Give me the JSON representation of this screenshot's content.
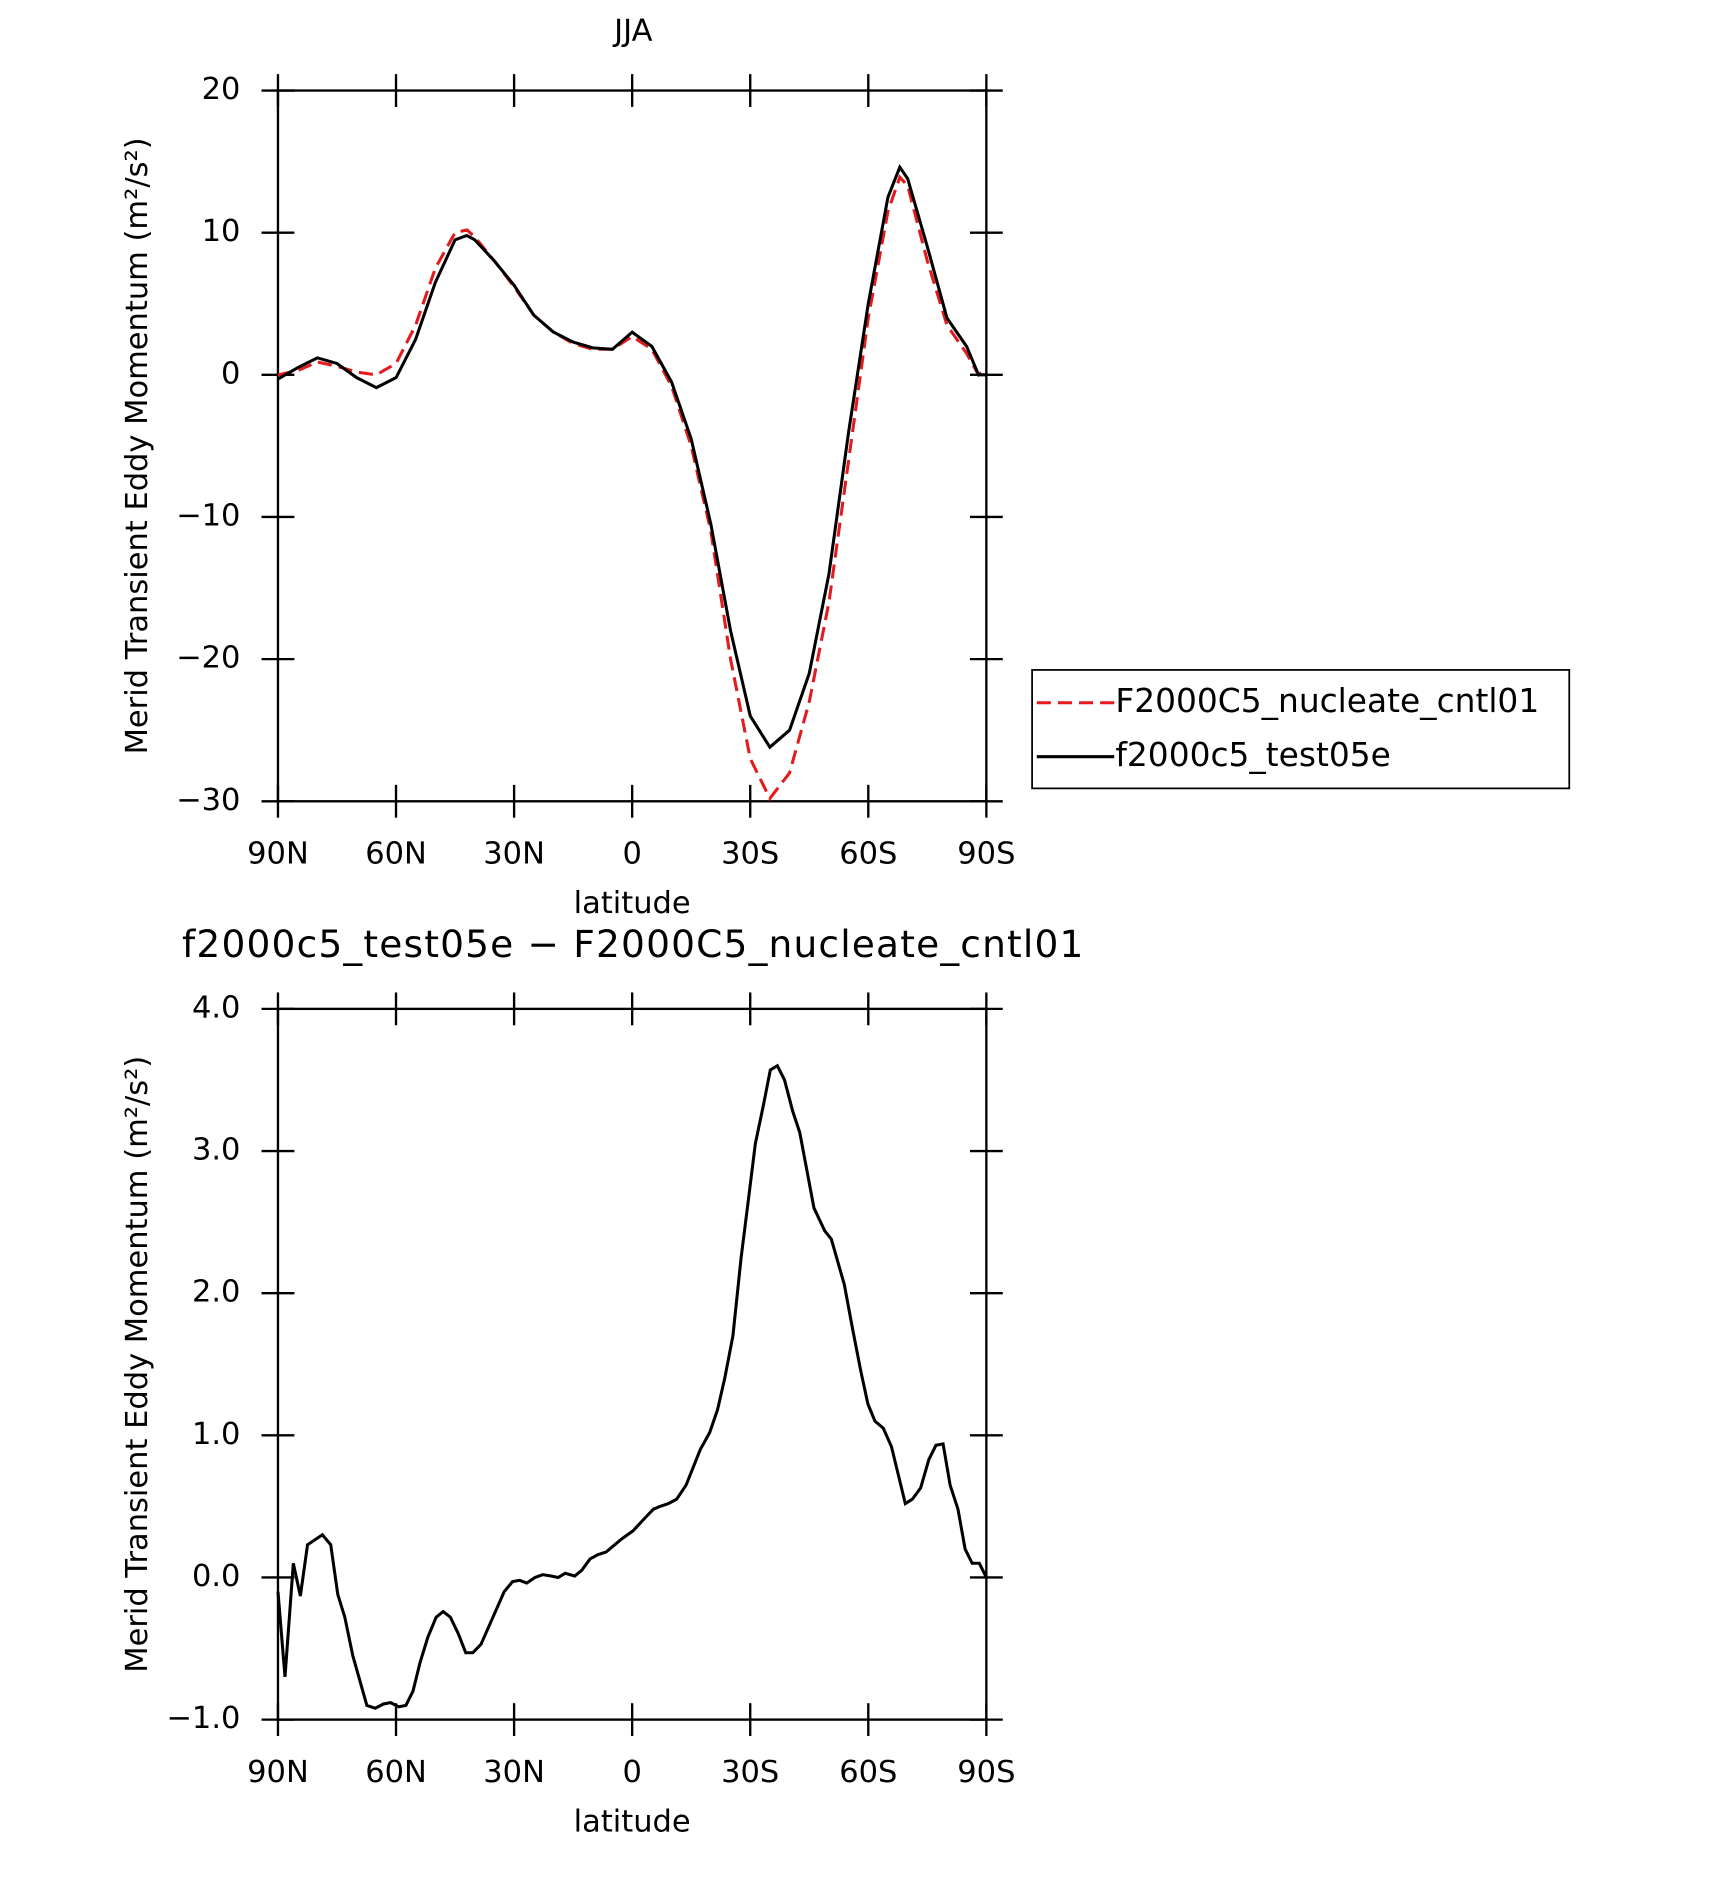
{
  "chart_data": [
    {
      "type": "line",
      "title": "JJA",
      "xlabel": "latitude",
      "ylabel": "Merid Transient Eddy Momentum (m²/s²)",
      "x": [
        90,
        85,
        80,
        75,
        70,
        65,
        60,
        55,
        50,
        45,
        42,
        40,
        35,
        30,
        25,
        20,
        15,
        10,
        5,
        0,
        -5,
        -10,
        -15,
        -20,
        -25,
        -30,
        -35,
        -40,
        -45,
        -50,
        -55,
        -60,
        -65,
        -68,
        -70,
        -75,
        -80,
        -85,
        -88,
        -90
      ],
      "series": [
        {
          "name": "F2000C5_nucleate_cntl01",
          "color": "#e41a1c",
          "dash": true,
          "values": [
            0,
            0.3,
            0.9,
            0.6,
            0.2,
            0,
            0.8,
            3.5,
            7.5,
            10,
            10.2,
            9.7,
            8,
            6.2,
            4.2,
            3,
            2.2,
            1.8,
            1.8,
            2.7,
            1.8,
            -0.8,
            -5,
            -11,
            -20,
            -27,
            -29.8,
            -28,
            -23,
            -16,
            -6,
            4,
            11.5,
            13.9,
            13.3,
            8,
            3.5,
            1.5,
            0,
            0.5
          ]
        },
        {
          "name": "f2000c5_test05e",
          "color": "#000000",
          "dash": false,
          "values": [
            -0.3,
            0.5,
            1.2,
            0.8,
            -0.2,
            -0.9,
            -0.2,
            2.5,
            6.5,
            9.5,
            9.8,
            9.5,
            8,
            6.3,
            4.2,
            3,
            2.3,
            1.9,
            1.8,
            3,
            2,
            -0.5,
            -4.5,
            -10.5,
            -18,
            -24,
            -26.2,
            -25,
            -21,
            -14,
            -4,
            5,
            12.5,
            14.6,
            13.8,
            9,
            4,
            2,
            0,
            0
          ]
        }
      ],
      "xlim": [
        90,
        -90
      ],
      "xticks": [
        {
          "value": 90,
          "label": "90N"
        },
        {
          "value": 60,
          "label": "60N"
        },
        {
          "value": 30,
          "label": "30N"
        },
        0,
        {
          "value": -30,
          "label": "30S"
        },
        {
          "value": -60,
          "label": "60S"
        },
        {
          "value": -90,
          "label": "90S"
        }
      ],
      "ylim": [
        -30,
        20
      ],
      "yticks": [
        20,
        10,
        0,
        {
          "value": -10,
          "label": "−10"
        },
        {
          "value": -20,
          "label": "−20"
        },
        {
          "value": -30,
          "label": "−30"
        }
      ],
      "legend": "right"
    },
    {
      "type": "line",
      "title": "f2000c5_test05e − F2000C5_nucleate_cntl01",
      "xlabel": "latitude",
      "ylabel": "Merid Transient Eddy Momentum (m²/s²)",
      "x": [
        90,
        88.2,
        86.1,
        84.3,
        82.5,
        78.7,
        76.6,
        74.8,
        73,
        71,
        67.4,
        65.3,
        63.2,
        61.4,
        59.3,
        57.5,
        55.7,
        53.9,
        51.9,
        49.8,
        48,
        46.2,
        44.1,
        42.3,
        40.5,
        38.4,
        32.5,
        30.4,
        28.6,
        26.8,
        24.7,
        22.7,
        20.6,
        18.8,
        17,
        14.6,
        12.8,
        10.7,
        8.7,
        6.6,
        2.7,
        -0.3,
        -3.3,
        -5.4,
        -7.1,
        -9.2,
        -11.3,
        -13.7,
        -17.3,
        -19.7,
        -21.7,
        -23.5,
        -25.6,
        -27.7,
        -29.5,
        -31.3,
        -33.4,
        -35.1,
        -36.9,
        -38.7,
        -40.8,
        -42.6,
        -46.2,
        -48.9,
        -50.6,
        -53.9,
        -56,
        -58.1,
        -59.9,
        -61.7,
        -63.8,
        -65.9,
        -69.4,
        -71.2,
        -73.3,
        -75.4,
        -77.2,
        -79,
        -80.8,
        -82.8,
        -84.6,
        -86.4,
        -88.2,
        -90
      ],
      "values": [
        -0.1,
        -0.7,
        0.1,
        -0.13,
        0.23,
        0.3,
        0.23,
        -0.12,
        -0.28,
        -0.55,
        -0.9,
        -0.92,
        -0.89,
        -0.88,
        -0.91,
        -0.9,
        -0.8,
        -0.6,
        -0.42,
        -0.28,
        -0.24,
        -0.28,
        -0.4,
        -0.53,
        -0.53,
        -0.47,
        -0.1,
        -0.03,
        -0.02,
        -0.04,
        0,
        0.02,
        0.01,
        0,
        0.03,
        0.01,
        0.05,
        0.13,
        0.16,
        0.18,
        0.27,
        0.33,
        0.42,
        0.48,
        0.5,
        0.52,
        0.55,
        0.65,
        0.9,
        1.02,
        1.18,
        1.4,
        1.7,
        2.25,
        2.65,
        3.05,
        3.33,
        3.57,
        3.6,
        3.5,
        3.28,
        3.13,
        2.6,
        2.44,
        2.38,
        2.06,
        1.75,
        1.45,
        1.22,
        1.1,
        1.05,
        0.92,
        0.52,
        0.55,
        0.63,
        0.83,
        0.93,
        0.94,
        0.65,
        0.48,
        0.2,
        0.1,
        0.1,
        0
      ],
      "color": "#000000",
      "xlim": [
        90,
        -90
      ],
      "xticks": [
        {
          "value": 90,
          "label": "90N"
        },
        {
          "value": 60,
          "label": "60N"
        },
        {
          "value": 30,
          "label": "30N"
        },
        0,
        {
          "value": -30,
          "label": "30S"
        },
        {
          "value": -60,
          "label": "60S"
        },
        {
          "value": -90,
          "label": "90S"
        }
      ],
      "ylim": [
        -1,
        4
      ],
      "yticks": [
        {
          "value": 4,
          "label": "4.0"
        },
        {
          "value": 3,
          "label": "3.0"
        },
        {
          "value": 2,
          "label": "2.0"
        },
        {
          "value": 1,
          "label": "1.0"
        },
        {
          "value": 0,
          "label": "0.0"
        },
        {
          "value": -1,
          "label": "−1.0"
        }
      ]
    }
  ]
}
